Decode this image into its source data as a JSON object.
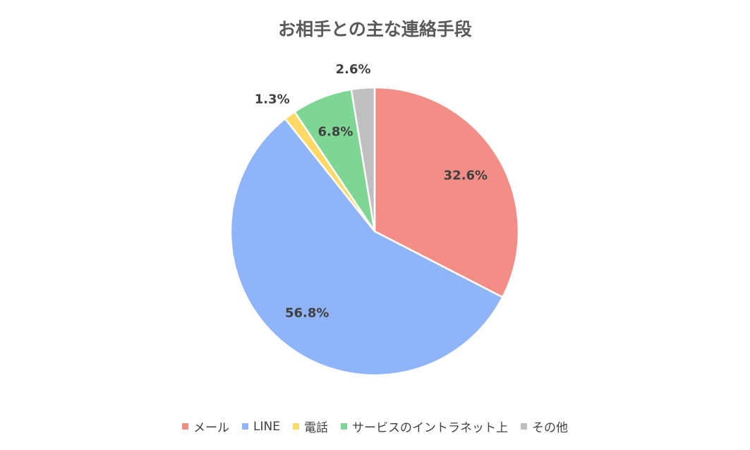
{
  "chart_data": {
    "type": "pie",
    "title": "お相手との主な連絡手段",
    "categories": [
      "メール",
      "LINE",
      "電話",
      "サービスのイントラネット上",
      "その他"
    ],
    "values": [
      32.6,
      56.8,
      1.3,
      6.8,
      2.6
    ],
    "data_labels": [
      "32.6%",
      "56.8%",
      "1.3%",
      "6.8%",
      "2.6%"
    ],
    "colors": [
      "#F28E85",
      "#8FB4F7",
      "#FFD966",
      "#7ED694",
      "#BFBFBF"
    ],
    "start_angle_deg": 0,
    "direction": "clockwise",
    "legend_position": "bottom"
  }
}
